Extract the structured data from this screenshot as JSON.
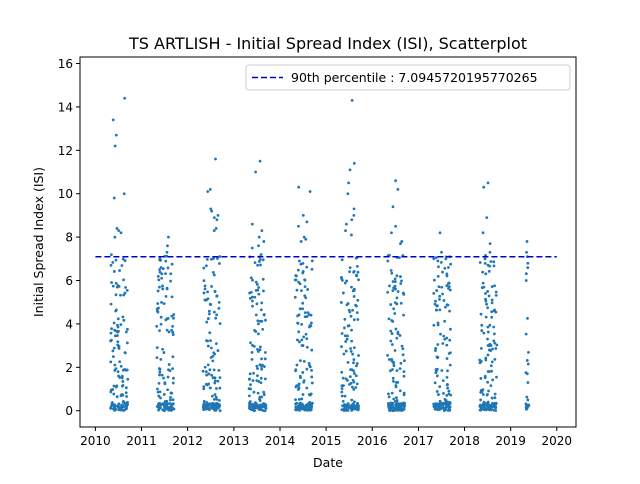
{
  "chart_data": {
    "type": "scatter",
    "title": "TS ARTLISH - Initial Spread Index (ISI), Scatterplot",
    "xlabel": "Date",
    "ylabel": "Initial Spread Index (ISI)",
    "xlim": [
      "2009-09-01",
      "2020-06-01"
    ],
    "ylim": [
      -0.75,
      16.3
    ],
    "x_ticks": [
      "2010",
      "2011",
      "2012",
      "2013",
      "2014",
      "2015",
      "2016",
      "2017",
      "2018",
      "2019",
      "2020"
    ],
    "y_ticks": [
      0,
      2,
      4,
      6,
      8,
      10,
      12,
      14,
      16
    ],
    "grid": false,
    "legend_position": "upper right",
    "reference_line": {
      "label": "90th percentile : 7.0945720195770265",
      "value": 7.0945720195770265,
      "color": "#0000cc",
      "style": "dashed",
      "x_range": [
        "2010-01-01",
        "2020-01-01"
      ]
    },
    "marker_color": "#1f77b4",
    "seasons": [
      {
        "start": "2010-05-01",
        "end": "2010-09-15",
        "peaks": [
          14.4,
          13.4,
          12.7,
          12.2,
          10.0,
          9.8,
          8.4,
          8.3,
          8.2,
          8.0
        ]
      },
      {
        "start": "2011-05-01",
        "end": "2011-09-15",
        "peaks": [
          8.0,
          7.6,
          7.3,
          7.0,
          6.6,
          6.5
        ]
      },
      {
        "start": "2012-05-01",
        "end": "2012-09-15",
        "peaks": [
          11.6,
          10.2,
          10.1,
          9.3,
          9.2,
          9.0,
          8.9,
          8.8,
          8.4,
          8.3
        ]
      },
      {
        "start": "2013-05-01",
        "end": "2013-09-15",
        "peaks": [
          11.5,
          11.0,
          8.6,
          8.3,
          8.0,
          7.8,
          7.6,
          7.5
        ]
      },
      {
        "start": "2014-05-01",
        "end": "2014-09-15",
        "peaks": [
          10.3,
          10.1,
          9.0,
          8.7,
          8.5,
          8.0,
          7.9,
          7.8
        ]
      },
      {
        "start": "2015-05-01",
        "end": "2015-09-15",
        "peaks": [
          14.3,
          11.4,
          11.1,
          10.5,
          10.0,
          9.3,
          9.0,
          8.8,
          8.6,
          8.3,
          8.1
        ]
      },
      {
        "start": "2016-05-01",
        "end": "2016-09-15",
        "peaks": [
          10.6,
          10.2,
          9.4,
          8.5,
          8.2,
          7.8,
          7.7
        ]
      },
      {
        "start": "2017-05-01",
        "end": "2017-09-15",
        "peaks": [
          8.2,
          7.3,
          7.0,
          6.9,
          6.6
        ]
      },
      {
        "start": "2018-05-01",
        "end": "2018-09-15",
        "peaks": [
          10.5,
          10.3,
          8.9,
          8.2,
          7.7,
          7.3,
          7.0
        ]
      },
      {
        "start": "2019-05-01",
        "end": "2019-05-25",
        "peaks": [
          7.8,
          7.3,
          7.1,
          6.0
        ]
      }
    ]
  }
}
